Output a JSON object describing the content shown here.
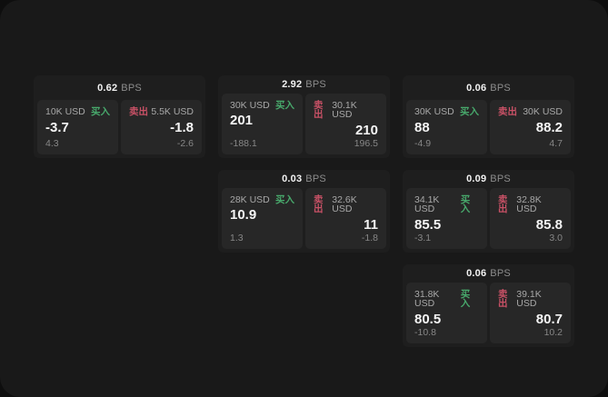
{
  "labels": {
    "unit": "BPS",
    "buy": "买入",
    "sell": "卖出"
  },
  "colors": {
    "buy_green": "#48a96c",
    "sell_red": "#c85166",
    "card_bg": "#1e1e1e",
    "panel_bg": "#272727",
    "frame_bg": "#191919",
    "page_bg": "#0e0e0e",
    "primary_text": "#f5f5f5",
    "secondary_text": "#a8a8a8",
    "muted_text": "#878787"
  },
  "cards": [
    {
      "bps": "0.62",
      "buy": {
        "notional": "10K USD",
        "price": "-3.7",
        "delta": "4.3"
      },
      "sell": {
        "notional": "5.5K USD",
        "price": "-1.8",
        "delta": "-2.6"
      }
    },
    {
      "bps": "2.92",
      "buy": {
        "notional": "30K USD",
        "price": "201",
        "delta": "-188.1"
      },
      "sell": {
        "notional": "30.1K USD",
        "price": "210",
        "delta": "196.5"
      }
    },
    {
      "bps": "0.06",
      "buy": {
        "notional": "30K USD",
        "price": "88",
        "delta": "-4.9"
      },
      "sell": {
        "notional": "30K USD",
        "price": "88.2",
        "delta": "4.7"
      }
    },
    {
      "bps": "0.03",
      "buy": {
        "notional": "28K USD",
        "price": "10.9",
        "delta": "1.3"
      },
      "sell": {
        "notional": "32.6K USD",
        "price": "11",
        "delta": "-1.8"
      }
    },
    {
      "bps": "0.09",
      "buy": {
        "notional": "34.1K USD",
        "price": "85.5",
        "delta": "-3.1"
      },
      "sell": {
        "notional": "32.8K USD",
        "price": "85.8",
        "delta": "3.0"
      }
    },
    {
      "bps": "0.06",
      "buy": {
        "notional": "31.8K USD",
        "price": "80.5",
        "delta": "-10.8"
      },
      "sell": {
        "notional": "39.1K USD",
        "price": "80.7",
        "delta": "10.2"
      }
    }
  ]
}
